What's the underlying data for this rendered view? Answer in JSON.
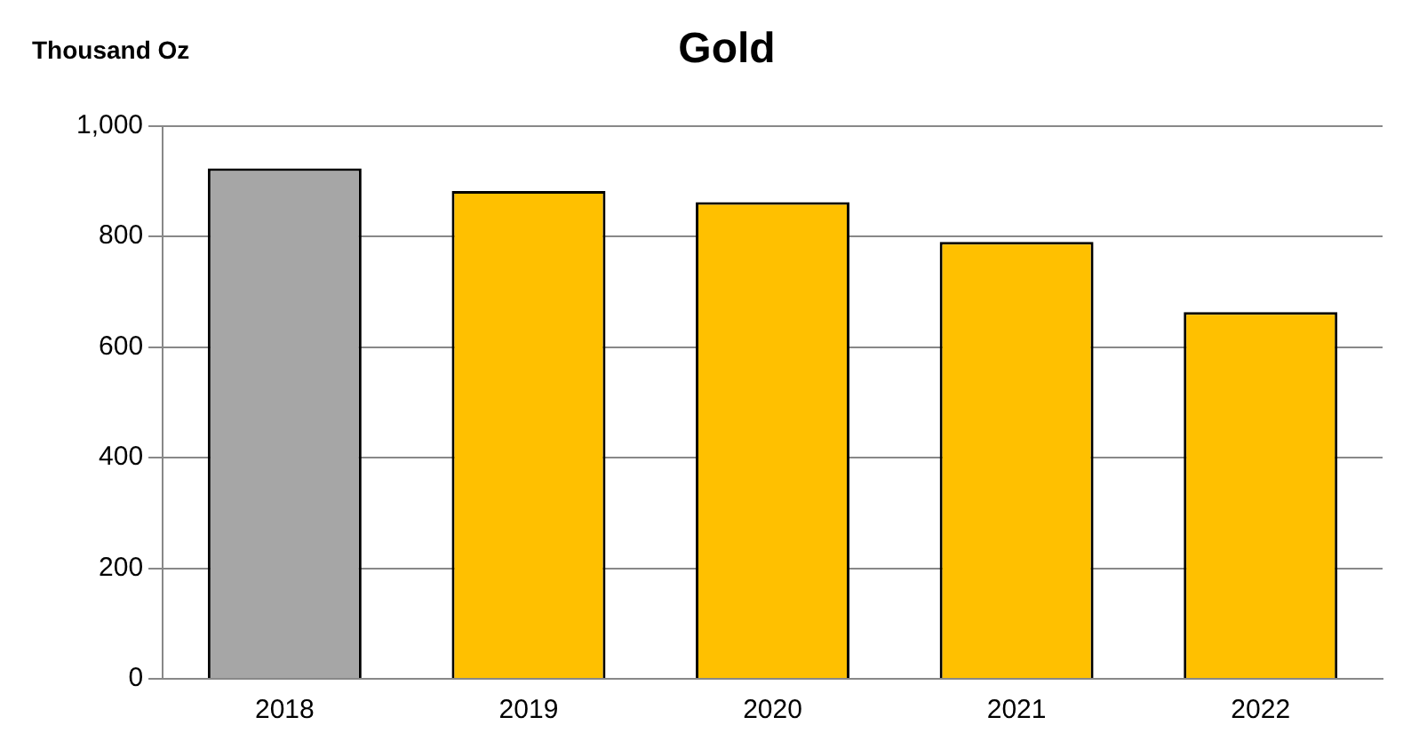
{
  "chart_data": {
    "type": "bar",
    "title": "Gold",
    "ylabel": "Thousand Oz",
    "categories": [
      "2018",
      "2019",
      "2020",
      "2021",
      "2022"
    ],
    "values": [
      923,
      882,
      862,
      790,
      663
    ],
    "colors": [
      "#a6a6a6",
      "#ffc000",
      "#ffc000",
      "#ffc000",
      "#ffc000"
    ],
    "ylim": [
      0,
      1000
    ],
    "yticks": [
      {
        "value": 0,
        "label": "0"
      },
      {
        "value": 200,
        "label": "200"
      },
      {
        "value": 400,
        "label": "400"
      },
      {
        "value": 600,
        "label": "600"
      },
      {
        "value": 800,
        "label": "800"
      },
      {
        "value": 1000,
        "label": "1,000"
      }
    ],
    "grid": "y",
    "legend": false
  }
}
